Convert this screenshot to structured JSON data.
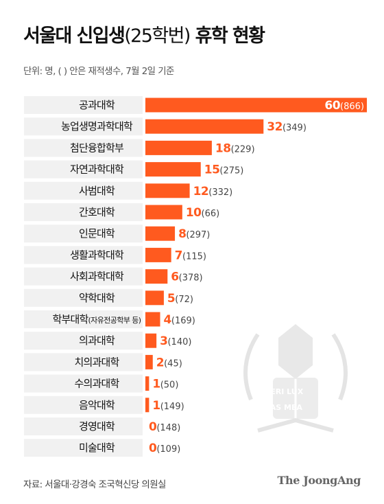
{
  "header": {
    "title_main": "서울대 신입생",
    "title_paren": "(25학번)",
    "title_tail": "휴학 현황",
    "unit_note": "단위: 명, ( ) 안은 재적생수, 7월 2일 기준"
  },
  "footer": {
    "source": "자료: 서울대·강경숙 조국혁신당 의원실",
    "brand": "The JoongAng"
  },
  "watermark": {
    "line1": "VERI LUX",
    "line2": "TAS MEA"
  },
  "colors": {
    "bar": "#ff5a1f",
    "bar_value_text": "#ff5a1f",
    "value_inside": "#ffffff",
    "zero_value": "#ff5a1f",
    "row_bg": "#f1f1f1"
  },
  "chart_data": {
    "type": "bar",
    "orientation": "horizontal",
    "categories": [
      "공과대학",
      "농업생명과학대학",
      "첨단융합학부",
      "자연과학대학",
      "사범대학",
      "간호대학",
      "인문대학",
      "생활과학대학",
      "사회과학대학",
      "약학대학",
      "학부대학",
      "의과대학",
      "치의과대학",
      "수의과대학",
      "음악대학",
      "경영대학",
      "미술대학"
    ],
    "category_notes": [
      "",
      "",
      "",
      "",
      "",
      "",
      "",
      "",
      "",
      "",
      "(자유전공학부 등)",
      "",
      "",
      "",
      "",
      "",
      ""
    ],
    "values": [
      60,
      32,
      18,
      15,
      12,
      10,
      8,
      7,
      6,
      5,
      4,
      3,
      2,
      1,
      1,
      0,
      0
    ],
    "enrolled": [
      866,
      349,
      229,
      275,
      332,
      66,
      297,
      115,
      378,
      72,
      169,
      140,
      45,
      50,
      149,
      148,
      109
    ],
    "xlim": [
      0,
      60
    ],
    "grid": false,
    "legend": "none"
  }
}
